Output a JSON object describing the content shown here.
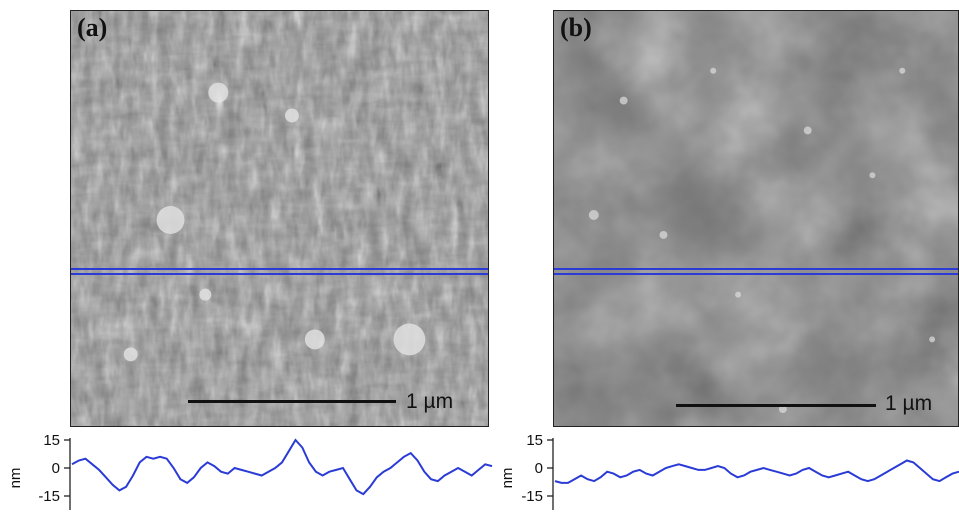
{
  "panels": [
    {
      "label": "(a)",
      "scale_bar": "1 µm",
      "profile": {
        "unit": "nm",
        "ticks": [
          "15",
          "0",
          "-15"
        ],
        "values": [
          2,
          4,
          5,
          2,
          -1,
          -5,
          -9,
          -12,
          -10,
          -4,
          3,
          6,
          5,
          6,
          5,
          0,
          -6,
          -8,
          -5,
          0,
          3,
          1,
          -2,
          -3,
          0,
          -1,
          -2,
          -3,
          -4,
          -2,
          0,
          3,
          9,
          15,
          11,
          3,
          -2,
          -4,
          -2,
          -1,
          0,
          -6,
          -12,
          -14,
          -10,
          -5,
          -2,
          0,
          3,
          6,
          8,
          4,
          -2,
          -6,
          -7,
          -4,
          -2,
          0,
          -2,
          -4,
          -1,
          2,
          1
        ]
      }
    },
    {
      "label": "(b)",
      "scale_bar": "1 µm",
      "profile": {
        "unit": "nm",
        "ticks": [
          "15",
          "0",
          "-15"
        ],
        "values": [
          -7,
          -8,
          -8,
          -6,
          -4,
          -6,
          -7,
          -5,
          -2,
          -3,
          -5,
          -4,
          -2,
          -1,
          -3,
          -4,
          -2,
          0,
          1,
          2,
          1,
          0,
          -1,
          -1,
          0,
          1,
          0,
          -3,
          -5,
          -4,
          -2,
          -1,
          0,
          -1,
          -2,
          -3,
          -4,
          -3,
          -1,
          0,
          -2,
          -4,
          -5,
          -4,
          -3,
          -2,
          -4,
          -6,
          -7,
          -6,
          -4,
          -2,
          0,
          2,
          4,
          3,
          0,
          -3,
          -6,
          -7,
          -5,
          -3,
          -2
        ]
      }
    }
  ],
  "colors": {
    "profile_line": "#2a3bd6",
    "scan_line": "#2a3bd6"
  }
}
